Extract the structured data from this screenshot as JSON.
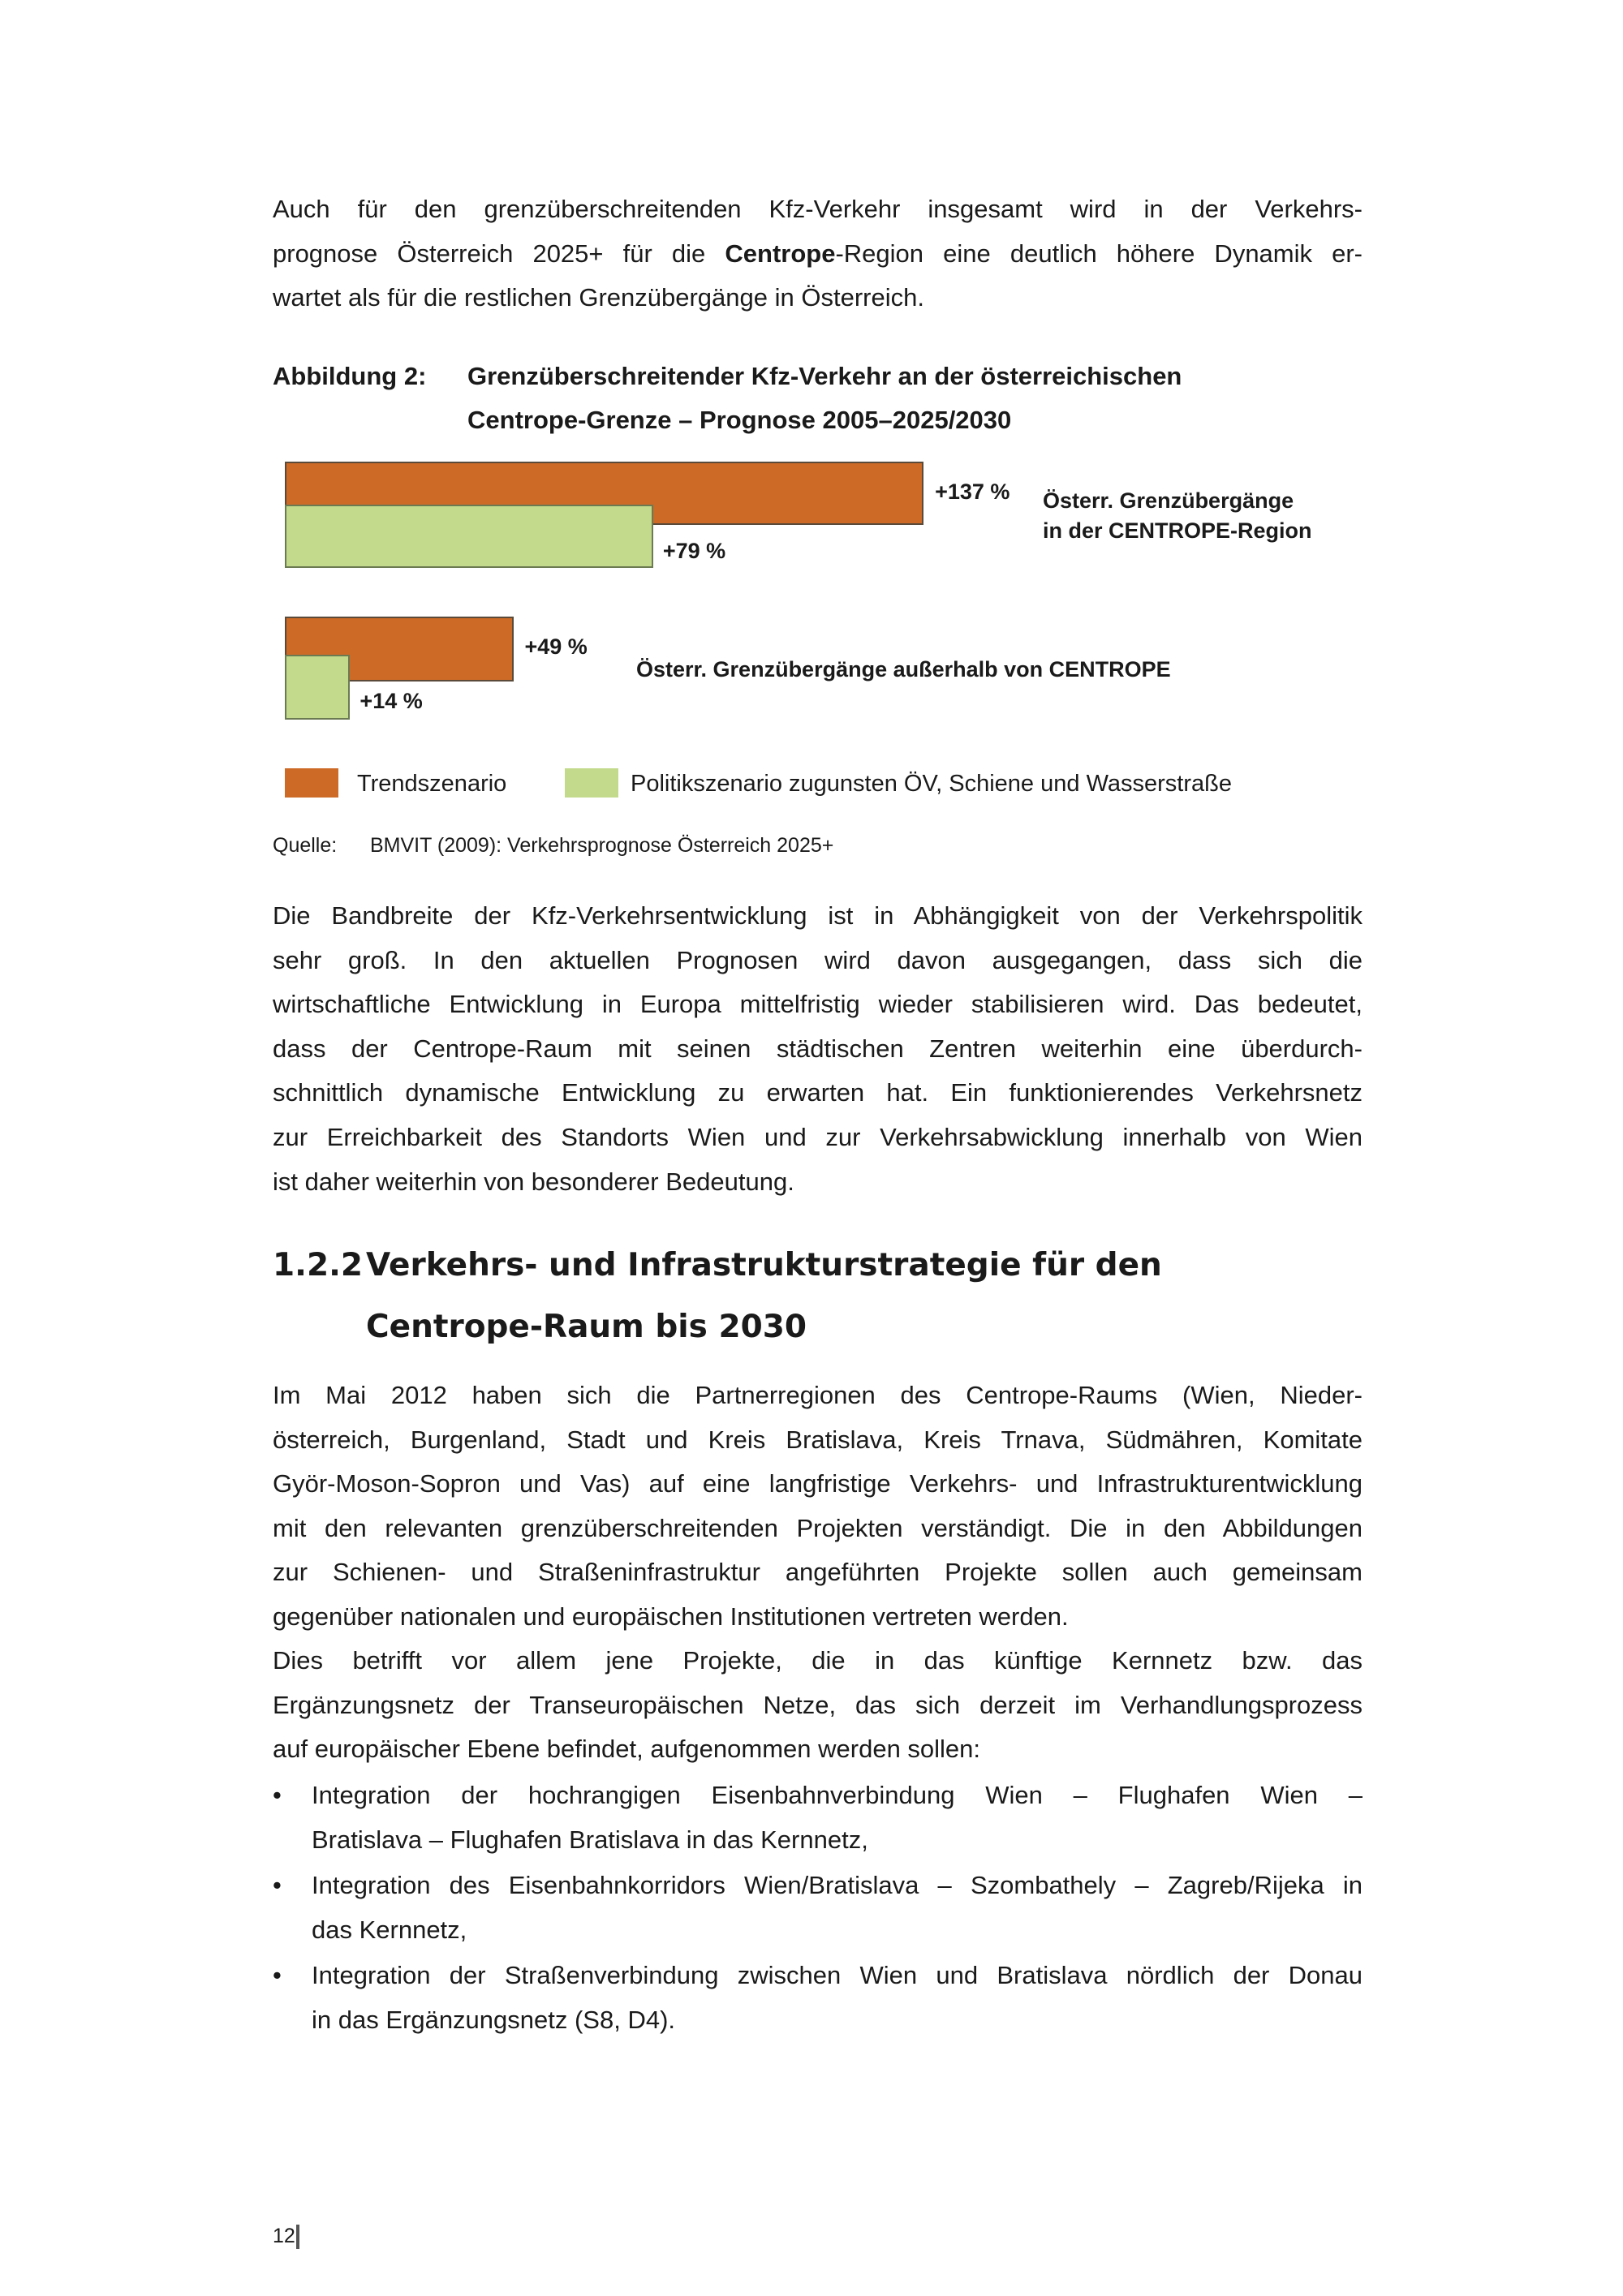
{
  "para1": [
    [
      "Auch für den grenzüberschreitenden Kfz-Verkehr insgesamt wird in der Verkehrs-"
    ],
    [
      {
        "t": "prognose Österreich 2025+ für die "
      },
      {
        "t": "Centrope",
        "b": true
      },
      {
        "t": "-Region eine deutlich höhere Dynamik er-"
      }
    ],
    [
      "wartet als für die restlichen Grenzübergänge in Österreich."
    ]
  ],
  "figure": {
    "label": "Abbildung 2:",
    "title_line1": "Grenzüberschreitender Kfz-Verkehr an der österreichischen",
    "title_line2": "Centrope-Grenze – Prognose 2005–2025/2030",
    "source_label": "Quelle:",
    "source_text": "BMVIT (2009): Verkehrsprognose Österreich 2025+"
  },
  "chart_data": {
    "type": "bar",
    "orientation": "horizontal",
    "categories": [
      "Österr. Grenzübergänge in der CENTROPE-Region",
      "Österr. Grenzübergänge außerhalb von CENTROPE"
    ],
    "category_labels": [
      [
        "Österr. Grenzübergänge",
        "in der CENTROPE-Region"
      ],
      [
        "Österr. Grenzübergänge außerhalb von CENTROPE"
      ]
    ],
    "series": [
      {
        "name": "Trendszenario",
        "values": [
          137,
          49
        ],
        "labels": [
          "+137 %",
          "+49 %"
        ],
        "color": "#cd6a26"
      },
      {
        "name": "Politikszenario zugunsten ÖV, Schiene und Wasserstraße",
        "values": [
          79,
          14
        ],
        "labels": [
          "+79 %",
          "+14 %"
        ],
        "color": "#c3da8c"
      }
    ],
    "unit": "%",
    "legend_position": "bottom",
    "grid": false
  },
  "para2": [
    "Die Bandbreite der Kfz-Verkehrsentwicklung ist in Abhängigkeit von der Verkehrspolitik",
    "sehr groß. In den aktuellen Prognosen wird davon ausgegangen, dass sich die",
    "wirtschaftliche Entwicklung in Europa mittelfristig wieder stabilisieren wird. Das bedeutet,",
    "dass der Centrope-Raum mit seinen städtischen Zentren weiterhin eine überdurch-",
    "schnittlich dynamische Entwicklung zu erwarten hat. Ein funktionierendes Verkehrsnetz",
    "zur Erreichbarkeit des Standorts Wien und zur Verkehrsabwicklung innerhalb von Wien",
    "ist daher weiterhin von besonderer Bedeutung."
  ],
  "section": {
    "number": "1.2.2",
    "title_line1": "Verkehrs- und Infrastrukturstrategie für den",
    "title_line2": "Centrope-Raum bis 2030"
  },
  "para3": [
    "Im Mai 2012 haben sich die Partnerregionen des Centrope-Raums (Wien, Nieder-",
    "österreich, Burgenland, Stadt und Kreis Bratislava, Kreis Trnava, Südmähren, Komitate",
    "Györ-Moson-Sopron und Vas) auf eine langfristige Verkehrs- und Infrastrukturentwicklung",
    "mit den relevanten grenzüberschreitenden Projekten verständigt. Die in den Abbildungen",
    "zur Schienen- und Straßeninfrastruktur angeführten Projekte sollen auch gemeinsam",
    "gegenüber nationalen und europäischen Institutionen vertreten werden."
  ],
  "para4": [
    "Dies betrifft vor allem jene Projekte, die in das künftige Kernnetz bzw. das",
    "Ergänzungsnetz der Transeuropäischen Netze, das sich derzeit im Verhandlungsprozess",
    "auf europäischer Ebene befindet, aufgenommen werden sollen:"
  ],
  "bullets": [
    [
      "Integration der hochrangigen Eisenbahnverbindung Wien – Flughafen Wien –",
      "Bratislava – Flughafen Bratislava in das Kernnetz,"
    ],
    [
      "Integration des Eisenbahnkorridors Wien/Bratislava – Szombathely – Zagreb/Rijeka in",
      "das Kernnetz,"
    ],
    [
      "Integration der Straßenverbindung zwischen Wien und Bratislava nördlich der Donau",
      "in das Ergänzungsnetz (S8, D4)."
    ]
  ],
  "bullet_symbol": "•",
  "page_number": "12"
}
